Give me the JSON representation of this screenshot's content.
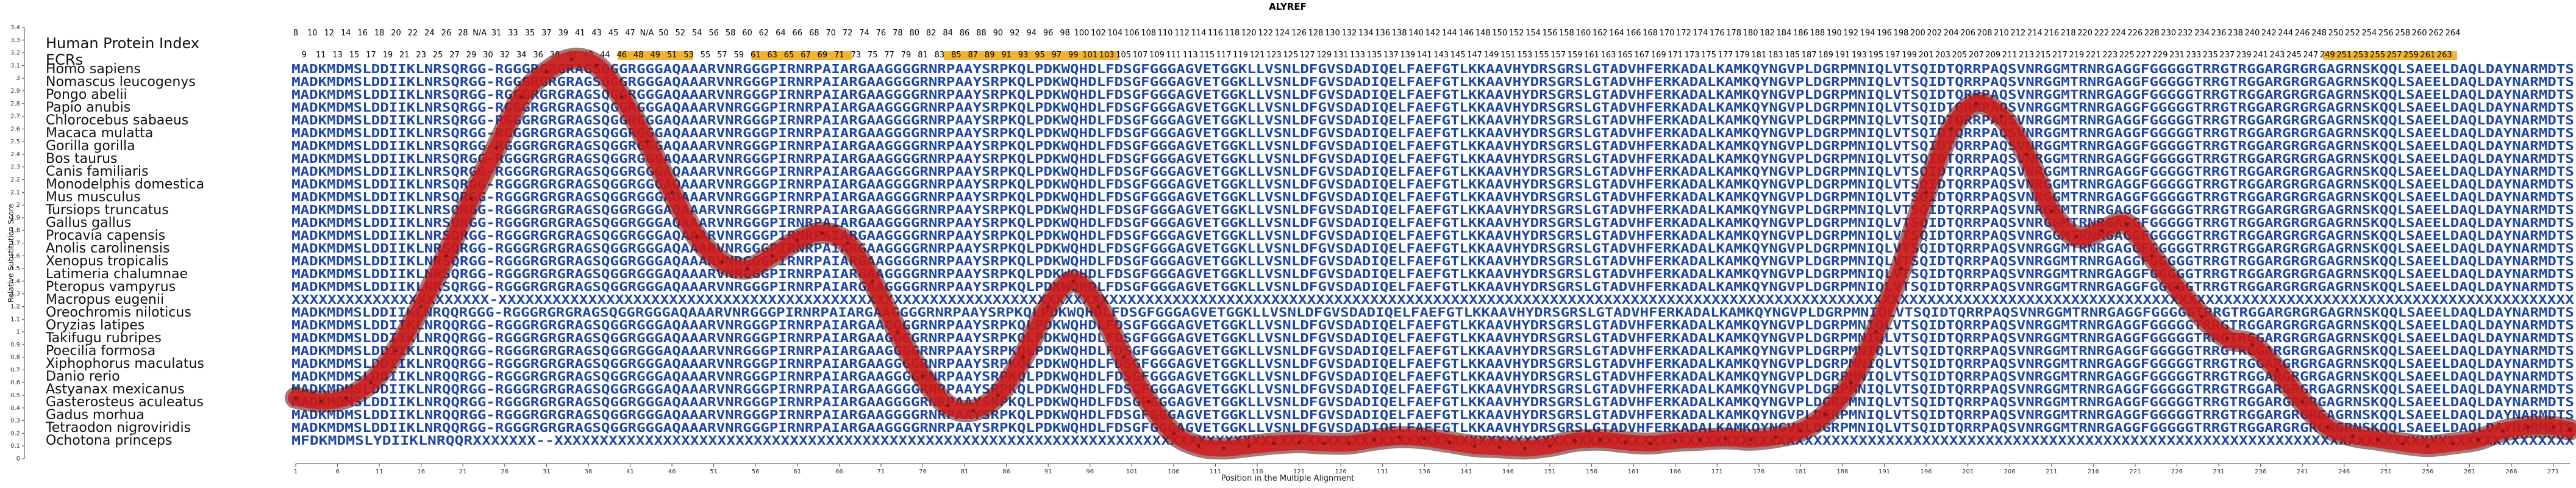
{
  "chart_data": {
    "type": "line",
    "title": "ALYREF",
    "xlabel": "Position in the Multiple Alignment",
    "ylabel": "Relative Substitution Score",
    "ylim": [
      0,
      3.4
    ],
    "yticks": [
      "0",
      "0.1",
      "0.2",
      "0.3",
      "0.4",
      "0.5",
      "0.6",
      "0.7",
      "0.8",
      "0.9",
      "1",
      "1.1",
      "1.2",
      "1.3",
      "1.4",
      "1.5",
      "1.6",
      "1.7",
      "1.8",
      "1.9",
      "2",
      "2.1",
      "2.2",
      "2.3",
      "2.4",
      "2.5",
      "2.6",
      "2.7",
      "2.8",
      "2.9",
      "3",
      "3.1",
      "3.2",
      "3.3",
      "3.4"
    ],
    "xlim": [
      1,
      273
    ],
    "xticks": [
      "1",
      "6",
      "11",
      "16",
      "21",
      "26",
      "31",
      "36",
      "41",
      "46",
      "51",
      "56",
      "61",
      "66",
      "71",
      "76",
      "81",
      "86",
      "91",
      "96",
      "101",
      "106",
      "111",
      "116",
      "121",
      "126",
      "131",
      "136",
      "141",
      "146",
      "151",
      "156",
      "161",
      "166",
      "171",
      "176",
      "181",
      "186",
      "191",
      "196",
      "201",
      "206",
      "211",
      "216",
      "221",
      "226",
      "231",
      "236",
      "241",
      "246",
      "251",
      "256",
      "261",
      "266",
      "271"
    ],
    "grid": false,
    "header_labels": {
      "index": "Human Protein Index",
      "ecrs": "ECRs"
    },
    "human_index": [
      "8",
      "10",
      "12",
      "14",
      "16",
      "18",
      "20",
      "22",
      "24",
      "26",
      "28",
      "N/A",
      "31",
      "33",
      "35",
      "37",
      "39",
      "41",
      "43",
      "45",
      "47",
      "N/A",
      "50",
      "52",
      "54",
      "56",
      "58",
      "60",
      "62",
      "64",
      "66",
      "68",
      "70",
      "72",
      "74",
      "76",
      "78",
      "80",
      "82",
      "84",
      "86",
      "88",
      "90",
      "92",
      "94",
      "96",
      "98",
      "100",
      "102",
      "104",
      "106",
      "108",
      "110",
      "112",
      "114",
      "116",
      "118",
      "120",
      "122",
      "124",
      "126",
      "128",
      "130",
      "132",
      "134",
      "136",
      "138",
      "140",
      "142",
      "144",
      "146",
      "148",
      "150",
      "152",
      "154",
      "156",
      "158",
      "160",
      "162",
      "164",
      "166",
      "168",
      "170",
      "172",
      "174",
      "176",
      "178",
      "180",
      "182",
      "184",
      "186",
      "188",
      "190",
      "192",
      "194",
      "196",
      "198",
      "200",
      "202",
      "204",
      "206",
      "208",
      "210",
      "212",
      "214",
      "216",
      "218",
      "220",
      "222",
      "224",
      "226",
      "228",
      "230",
      "232",
      "234",
      "236",
      "238",
      "240",
      "242",
      "244",
      "246",
      "248",
      "250",
      "252",
      "254",
      "256",
      "258",
      "260",
      "262",
      "264"
    ],
    "ecr_index": [
      "9",
      "11",
      "13",
      "15",
      "17",
      "19",
      "21",
      "23",
      "25",
      "27",
      "29",
      "30",
      "32",
      "34",
      "36",
      "38",
      "40",
      "42",
      "44",
      "46",
      "48",
      "49",
      "51",
      "53",
      "55",
      "57",
      "59",
      "61",
      "63",
      "65",
      "67",
      "69",
      "71",
      "73",
      "75",
      "77",
      "79",
      "81",
      "83",
      "85",
      "87",
      "89",
      "91",
      "93",
      "95",
      "97",
      "99",
      "101",
      "103",
      "105",
      "107",
      "109",
      "111",
      "113",
      "115",
      "117",
      "119",
      "121",
      "123",
      "125",
      "127",
      "129",
      "131",
      "133",
      "135",
      "137",
      "139",
      "141",
      "143",
      "145",
      "147",
      "149",
      "151",
      "153",
      "155",
      "157",
      "159",
      "161",
      "163",
      "165",
      "167",
      "169",
      "171",
      "173",
      "175",
      "177",
      "179",
      "181",
      "183",
      "185",
      "187",
      "189",
      "191",
      "193",
      "195",
      "197",
      "199",
      "201",
      "203",
      "205",
      "207",
      "209",
      "211",
      "213",
      "215",
      "217",
      "219",
      "221",
      "223",
      "225",
      "227",
      "229",
      "231",
      "233",
      "235",
      "237",
      "239",
      "241",
      "243",
      "245",
      "247",
      "249",
      "251",
      "253",
      "255",
      "257",
      "259",
      "261",
      "263"
    ],
    "ecr_highlight_ranges": [
      [
        40,
        48
      ],
      [
        56,
        67
      ],
      [
        79,
        99
      ],
      [
        244,
        259
      ]
    ],
    "species": [
      "Homo sapiens",
      "Nomascus leucogenys",
      "Pongo abelii",
      "Papio anubis",
      "Chlorocebus sabaeus",
      "Macaca mulatta",
      "Gorilla gorilla",
      "Bos taurus",
      "Canis familiaris",
      "Monodelphis domestica",
      "Mus musculus",
      "Tursiops truncatus",
      "Gallus gallus",
      "Procavia capensis",
      "Anolis carolinensis",
      "Xenopus tropicalis",
      "Latimeria chalumnae",
      "Pteropus vampyrus",
      "Macropus eugenii",
      "Oreochromis niloticus",
      "Oryzias latipes",
      "Takifugu rubripes",
      "Poecilia formosa",
      "Xiphophorus maculatus",
      "Danio rerio",
      "Astyanax mexicanus",
      "Gasterosteus aculeatus",
      "Gadus morhua",
      "Tetraodon nigroviridis",
      "Ochotona princeps"
    ],
    "sequences": [
      "MADKMDMSLDDIIKLNRSQRGG-RGGGRGRGRAGSQGGRGGGAQAAARVNRGGGPIRNRPAIARGAAGGGGRNRPAAYSRPKQLPDKWQHDLFDSGFGGGAGVETGGKLLVSNLDFGVSDADIQELFAEFGTLKKAAVHYDRSGRSLGTADVHFERKADALKAMKQYNGVPLDGRPMNIQLVTSQIDTQRRPAQSVNRGGMTRNRGAGGFGGGGGTRRGTRGGARGRGRGAGRNSKQQLSAEELDAQLDAYNARMDTS",
      "MADKMDMSLDDIIKLNRSQRGG-RGGGRGRGRAGSQGGRGGGAQAAARVNRGGGPIRNRPAIARGAAGGGGRNRPAAYSRPKQLPDKWQHDLFDSGFGGGAGVETGGKLLVSNLDFGVSDADIQELFAEFGTLKKAAVHYDRSGRSLGTADVHFERKADALKAMKQYNGVPLDGRPMNIQLVTSQIDTQRRPAQSVNRGGMTRNRGAGGFGGGGGTRRGTRGGARGRGRGAGRNSKQQLSAEELDAQLDAYNARMDTS",
      "MADKMDMSLDDIIKLNRSQRGG-RGGGRGRGRAGSQGGRGGGAQAAARVNRGGGPIRNRPAIARGAAGGGGRNRPAAYSRPKQLPDKWQHDLFDSGFGGGAGVETGGKLLVSNLDFGVSDADIQELFAEFGTLKKAAVHYDRSGRSLGTADVHFERKADALKAMKQYNGVPLDGRPMNIQLVTSQIDTQRRPAQSVNRGGMTRNRGAGGFGGGGGTRRGTRGGARGRGRGAGRNSKQQLSAEELDAQLDAYNARMDTS",
      "MADKMDMSLDDIIKLNRSQRGG-RGGGRGRGRAGSQGGRGGGAQAAARVNRGGGPIRNRPAIARGAAGGGGRNRPAAYSRPKQLPDKWQHDLFDSGFGGGAGVETGGKLLVSNLDFGVSDADIQELFAEFGTLKKAAVHYDRSGRSLGTADVHFERKADALKAMKQYNGVPLDGRPMNIQLVTSQIDTQRRPAQSVNRGGMTRNRGAGGFGGGGGTRRGTRGGARGRGRGAGRNSKQQLSAEELDAQLDAYNARMDTS",
      "MADKMDMSLDDIIKLNRSQRGG-RGGGRGRGRAGSQGGRGGGAQAAARVNRGGGPIRNRPAIARGAAGGGGRNRPAAYSRPKQLPDKWQHDLFDSGFGGGAGVETGGKLLVSNLDFGVSDADIQELFAEFGTLKKAAVHYDRSGRSLGTADVHFERKADALKAMKQYNGVPLDGRPMNIQLVTSQIDTQRRPAQSVNRGGMTRNRGAGGFGGGGGTRRGTRGGARGRGRGAGRNSKQQLSAEELDAQLDAYNARMDTS",
      "MADKMDMSLDDIIKLNRSQRGG-RGGGRGRGRAGSQGGRGGGAQAAARVNRGGGPIRNRPAIARGAAGGGGRNRPAAYSRPKQLPDKWQHDLFDSGFGGGAGVETGGKLLVSNLDFGVSDADIQELFAEFGTLKKAAVHYDRSGRSLGTADVHFERKADALKAMKQYNGVPLDGRPMNIQLVTSQIDTQRRPAQSVNRGGMTRNRGAGGFGGGGGTRRGTRGGARGRGRGAGRNSKQQLSAEELDAQLDAYNARMDTS",
      "MADKMDMSLDDIIKLNRSQRGG-RGGGRGRGRAGSQGGRGGGAQAAARVNRGGGPIRNRPAIARGAAGGGGRNRPAAYSRPKQLPDKWQHDLFDSGFGGGAGVETGGKLLVSNLDFGVSDADIQELFAEFGTLKKAAVHYDRSGRSLGTADVHFERKADALKAMKQYNGVPLDGRPMNIQLVTSQIDTQRRPAQSVNRGGMTRNRGAGGFGGGGGTRRGTRGGARGRGRGAGRNSKQQLSAEELDAQLDAYNARMDTS",
      "MADKMDMSLDDIIKLNRSQRGG-RGGGRGRGRAGSQGGRGGGAQAAARVNRGGGPIRNRPAIARGAAGGGGRNRPAAYSRPKQLPDKWQHDLFDSGFGGGAGVETGGKLLVSNLDFGVSDADIQELFAEFGTLKKAAVHYDRSGRSLGTADVHFERKADALKAMKQYNGVPLDGRPMNIQLVTSQIDTQRRPAQSVNRGGMTRNRGAGGFGGGGGTRRGTRGGARGRGRGAGRNSKQQLSAEELDAQLDAYNARMDTS",
      "MADKMDMSLDDIIKLNRSQRGG-RGGGRGRGRAGSQGGRGGGAQAAARVNRGGGPIRNRPAIARGAAGGGGRNRPAAYSRPKQLPDKWQHDLFDSGFGGGAGVETGGKLLVSNLDFGVSDADIQELFAEFGTLKKAAVHYDRSGRSLGTADVHFERKADALKAMKQYNGVPLDGRPMNIQLVTSQIDTQRRPAQSVNRGGMTRNRGAGGFGGGGGTRRGTRGGARGRGRGAGRNSKQQLSAEELDAQLDAYNARMDTS",
      "MADKMDMSLDDIIKLNRSQRGG-RGGGRGRGRAGSQGGRGGGAQAAARVNRGGGPIRNRPAIARGAAGGGGRNRPAAYSRPKQLPDKWQHDLFDSGFGGGAGVETGGKLLVSNLDFGVSDADIQELFAEFGTLKKAAVHYDRSGRSLGTADVHFERKADALKAMKQYNGVPLDGRPMNIQLVTSQIDTQRRPAQSVNRGGMTRNRGAGGFGGGGGTRRGTRGGARGRGRGAGRNSKQQLSAEELDAQLDAYNARMDTS",
      "MADKMDMSLDDIIKLNRSQRGG-RGGGRGRGRAGSQGGRGGGAQAAARVNRGGGPIRNRPAIARGAAGGGGRNRPAAYSRPKQLPDKWQHDLFDSGFGGGAGVETGGKLLVSNLDFGVSDADIQELFAEFGTLKKAAVHYDRSGRSLGTADVHFERKADALKAMKQYNGVPLDGRPMNIQLVTSQIDTQRRPAQSVNRGGMTRNRGAGGFGGGGGTRRGTRGGARGRGRGAGRNSKQQLSAEELDAQLDAYNARMDTS",
      "MADKMDMSLDDIIKLNRSQRGG-RGGGRGRGRAGSQGGRGGGAQAAARVNRGGGPIRNRPAIARGAAGGGGRNRPAAYSRPKQLPDKWQHDLFDSGFGGGAGVETGGKLLVSNLDFGVSDADIQELFAEFGTLKKAAVHYDRSGRSLGTADVHFERKADALKAMKQYNGVPLDGRPMNIQLVTSQIDTQRRPAQSVNRGGMTRNRGAGGFGGGGGTRRGTRGGARGRGRGAGRNSKQQLSAEELDAQLDAYNARMDTS",
      "MADKMDMSLDDIIKLNRSQRGG-RGGGRGRGRAGSQGGRGGGAQAAARVNRGGGPIRNRPAIARGAAGGGGRNRPAAYSRPKQLPDKWQHDLFDSGFGGGAGVETGGKLLVSNLDFGVSDADIQELFAEFGTLKKAAVHYDRSGRSLGTADVHFERKADALKAMKQYNGVPLDGRPMNIQLVTSQIDTQRRPAQSVNRGGMTRNRGAGGFGGGGGTRRGTRGGARGRGRGAGRNSKQQLSAEELDAQLDAYNARMDTS",
      "MADKMDMSLDDIIKLNRSQRGG-RGGGRGRGRAGSQGGRGGGAQAAARVNRGGGPIRNRPAIARGAAGGGGRNRPAAYSRPKQLPDKWQHDLFDSGFGGGAGVETGGKLLVSNLDFGVSDADIQELFAEFGTLKKAAVHYDRSGRSLGTADVHFERKADALKAMKQYNGVPLDGRPMNIQLVTSQIDTQRRPAQSVNRGGMTRNRGAGGFGGGGGTRRGTRGGARGRGRGAGRNSKQQLSAEELDAQLDAYNARMDTS",
      "MADKMDMSLDDIIKLNRSQRGG-RGGGRGRGRAGSQGGRGGGAQAAARVNRGGGPIRNRPAIARGAAGGGGRNRPAAYSRPKQLPDKWQHDLFDSGFGGGAGVETGGKLLVSNLDFGVSDADIQELFAEFGTLKKAAVHYDRSGRSLGTADVHFERKADALKAMKQYNGVPLDGRPMNIQLVTSQIDTQRRPAQSVNRGGMTRNRGAGGFGGGGGTRRGTRGGARGRGRGAGRNSKQQLSAEELDAQLDAYNARMDTS",
      "MADKMDMSLDDIIKLNRSQRGG-RGGGRGRGRAGSQGGRGGGAQAAARVNRGGGPIRNRPAIARGAAGGGGRNRPAAYSRPKQLPDKWQHDLFDSGFGGGAGVETGGKLLVSNLDFGVSDADIQELFAEFGTLKKAAVHYDRSGRSLGTADVHFERKADALKAMKQYNGVPLDGRPMNIQLVTSQIDTQRRPAQSVNRGGMTRNRGAGGFGGGGGTRRGTRGGARGRGRGAGRNSKQQLSAEELDAQLDAYNARMDTS",
      "MADKMDMSLDDIIKLNRSQRGG-RGGGRGRGRAGSQGGRGGGAQAAARVNRGGGPIRNRPAIARGAAGGGGRNRPAAYSRPKQLPDKWQHDLFDSGFGGGAGVETGGKLLVSNLDFGVSDADIQELFAEFGTLKKAAVHYDRSGRSLGTADVHFERKADALKAMKQYNGVPLDGRPMNIQLVTSQIDTQRRPAQSVNRGGMTRNRGAGGFGGGGGTRRGTRGGARGRGRGAGRNSKQQLSAEELDAQLDAYNARMDTS",
      "MADKMDMSLDDIIKLNRSQRGG-RGGGRGRGRAGSQGGRGGGAQAAARVNRGGGPIRNRPAIARGAAGGGGRNRPAAYSRPKQLPDKWQHDLFDSGFGGGAGVETGGKLLVSNLDFGVSDADIQELFAEFGTLKKAAVHYDRSGRSLGTADVHFERKADALKAMKQYNGVPLDGRPMNIQLVTSQIDTQRRPAQSVNRGGMTRNRGAGGFGGGGGTRRGTRGGARGRGRGAGRNSKQQLSAEELDAQLDAYNARMDTS",
      "XXXXXXXXXXXXXXXXXXXXXX-XXXXXXXXXXXXXXXXXXXXXXXXXXXXXXXXXXXXXXXXXXXXXXXXXXXXXXXXXXXXXXXXXXXXXXXXXXXXXXXXXXXXXXXXXXXXXXXXXXXXXXXXXXXXXXXXXXXXXXXXXXXXXXXXXXXXXXXXXXXXXXXXXXXXXXXXXXXXXXXXXXXXXXXXXXXXXXXXXXXXXXXXXXXXXXXXXXXXXXXXXXXXXXXXXXXXXXXXXXXXXXXXXXXXXXX",
      "MADKMDMSLDDIIKLNRQQRGGG-RGGGRGRGRAGSQGGRGGGAQAAARVNRGGGPIRNRPAIARGAAGGGGRNRPAAYSRPKQLPDKWQHDLFDSGFGGGAGVETGGKLLVSNLDFGVSDADIQELFAEFGTLKKAAVHYDRSGRSLGTADVHFERKADALKAMKQYNGVPLDGRPMNIQLVTSQIDTQRRPAQSVNRGGMTRNRGAGGFGGGGGTRRGTRGGARGRGRGAGRNSKQQLSAEELDAQLDAYNARMDTS",
      "MADKMDMSLDDIIKLNRQQRGG-RGGGRGRGRAGSQGGRGGGAQAAARVNRGGGPIRNRPAIARGAAGGGGRNRPAAYSRPKQLPDKWQHDLFDSGFGGGAGVETGGKLLVSNLDFGVSDADIQELFAEFGTLKKAAVHYDRSGRSLGTADVHFERKADALKAMKQYNGVPLDGRPMNIQLVTSQIDTQRRPAQSVNRGGMTRNRGAGGFGGGGGTRRGTRGGARGRGRGAGRNSKQQLSAEELDAQLDAYNARMDTS",
      "MADKMDMSLDDIIKLNRQQRGG-RGGGRGRGRAGSQGGRGGGAQAAARVNRGGGPIRNRPAIARGAAGGGGRNRPAAYSRPKQLPDKWQHDLFDSGFGGGAGVETGGKLLVSNLDFGVSDADIQELFAEFGTLKKAAVHYDRSGRSLGTADVHFERKADALKAMKQYNGVPLDGRPMNIQLVTSQIDTQRRPAQSVNRGGMTRNRGAGGFGGGGGTRRGTRGGARGRGRGAGRNSKQQLSAEELDAQLDAYNARMDTS",
      "MADKMDMSLDDIIKLNRQQRGG-RGGGRGRGRAGSQGGRGGGAQAAARVNRGGGPIRNRPAIARGAAGGGGRNRPAAYSRPKQLPDKWQHDLFDSGFGGGAGVETGGKLLVSNLDFGVSDADIQELFAEFGTLKKAAVHYDRSGRSLGTADVHFERKADALKAMKQYNGVPLDGRPMNIQLVTSQIDTQRRPAQSVNRGGMTRNRGAGGFGGGGGTRRGTRGGARGRGRGAGRNSKQQLSAEELDAQLDAYNARMDTS",
      "MADKMDMSLDDIIKLNRQQRGG-RGGGRGRGRAGSQGGRGGGAQAAARVNRGGGPIRNRPAIARGAAGGGGRNRPAAYSRPKQLPDKWQHDLFDSGFGGGAGVETGGKLLVSNLDFGVSDADIQELFAEFGTLKKAAVHYDRSGRSLGTADVHFERKADALKAMKQYNGVPLDGRPMNIQLVTSQIDTQRRPAQSVNRGGMTRNRGAGGFGGGGGTRRGTRGGARGRGRGAGRNSKQQLSAEELDAQLDAYNARMDTS",
      "MADKMDMSLDDIIKLNRQQRGG-RGGGRGRGRAGSQGGRGGGAQAAARVNRGGGPIRNRPAIARGAAGGGGRNRPAAYSRPKQLPDKWQHDLFDSGFGGGAGVETGGKLLVSNLDFGVSDADIQELFAEFGTLKKAAVHYDRSGRSLGTADVHFERKADALKAMKQYNGVPLDGRPMNIQLVTSQIDTQRRPAQSVNRGGMTRNRGAGGFGGGGGTRRGTRGGARGRGRGAGRNSKQQLSAEELDAQLDAYNARMDTS",
      "MADKMDMSLDDIIKLNRQQRGG-RGGGRGRGRAGSQGGRGGGAQAAARVNRGGGPIRNRPAIARGAAGGGGRNRPAAYSRPKQLPDKWQHDLFDSGFGGGAGVETGGKLLVSNLDFGVSDADIQELFAEFGTLKKAAVHYDRSGRSLGTADVHFERKADALKAMKQYNGVPLDGRPMNIQLVTSQIDTQRRPAQSVNRGGMTRNRGAGGFGGGGGTRRGTRGGARGRGRGAGRNSKQQLSAEELDAQLDAYNARMDTS",
      "MADKMDMSLDDIIKLNRQQRGG-RGGGRGRGRAGSQGGRGGGAQAAARVNRGGGPIRNRPAIARGAAGGGGRNRPAAYSRPKQLPDKWQHDLFDSGFGGGAGVETGGKLLVSNLDFGVSDADIQELFAEFGTLKKAAVHYDRSGRSLGTADVHFERKADALKAMKQYNGVPLDGRPMNIQLVTSQIDTQRRPAQSVNRGGMTRNRGAGGFGGGGGTRRGTRGGARGRGRGAGRNSKQQLSAEELDAQLDAYNARMDTS",
      "MADKMDMSLDDIIKLNRQQRGG-RGGGRGRGRAGSQGGRGGGAQAAARVNRGGGPIRNRPAIARGAAGGGGRNRPAAYSRPKQLPDKWQHDLFDSGFGGGAGVETGGKLLVSNLDFGVSDADIQELFAEFGTLKKAAVHYDRSGRSLGTADVHFERKADALKAMKQYNGVPLDGRPMNIQLVTSQIDTQRRPAQSVNRGGMTRNRGAGGFGGGGGTRRGTRGGARGRGRGAGRNSKQQLSAEELDAQLDAYNARMDTS",
      "MADKMDMSLDDIIKLNRQQRGG-RGGGRGRGRAGSQGGRGGGAQAAARVNRGGGPIRNRPAIARGAAGGGGRNRPAAYSRPKQLPDKWQHDLFDSGFGGGAGVETGGKLLVSNLDFGVSDADIQELFAEFGTLKKAAVHYDRSGRSLGTADVHFERKADALKAMKQYNGVPLDGRPMNIQLVTSQIDTQRRPAQSVNRGGMTRNRGAGGFGGGGGTRRGTRGGARGRGRGAGRNSKQQLSAEELDAQLDAYNARMDTS",
      "MFDKMDMSLYDIIKLNRQQRXXXXXXX--XXXXXXXXXXXXXXXXXXXXXXXXXXXXXXXXXXXXXXXXXXXXXXXXXXXXXXXXXXXXXXXXXXXXXXXXXXXXXXXXXXXXXXXXXXXXXXXXXXXXXXXXXXXXXXXXXXXXXXXXXXXXXXXXXXXXXXXXXXXXXXXXXXXXXXXXXXXXXXXXXXXXXXXXXXXXXXXXXXXXXXXXXXXXXXXXXXXXXXXXXXXXXXXXXXXXXXXXXXXXXXX"
    ],
    "series": [
      {
        "x": [
          1,
          4,
          7,
          10,
          13,
          16,
          19,
          22,
          25,
          28,
          31,
          34,
          37,
          40,
          43,
          46,
          49,
          52,
          55,
          58,
          61,
          64,
          67,
          70,
          73,
          76,
          79,
          82,
          85,
          88,
          91,
          94,
          97,
          100,
          103,
          106,
          109,
          112,
          115,
          118,
          121,
          124,
          127,
          130,
          133,
          136,
          139,
          142,
          145,
          148,
          151,
          154,
          157,
          160,
          163,
          166,
          169,
          172,
          175,
          178,
          181,
          184,
          187,
          190,
          193,
          196,
          199,
          202,
          205,
          208,
          211,
          214,
          217,
          220,
          223,
          226,
          229,
          232,
          235,
          238,
          241,
          244,
          247,
          250,
          253,
          256,
          259,
          262,
          265,
          268,
          271,
          273
        ],
        "y": [
          0.48,
          0.45,
          0.48,
          0.6,
          0.85,
          1.2,
          1.6,
          2.05,
          2.45,
          2.85,
          3.05,
          3.15,
          3.1,
          2.85,
          2.5,
          2.1,
          1.75,
          1.55,
          1.5,
          1.6,
          1.72,
          1.78,
          1.7,
          1.4,
          1.0,
          0.65,
          0.42,
          0.38,
          0.5,
          0.8,
          1.2,
          1.4,
          1.2,
          0.8,
          0.45,
          0.2,
          0.1,
          0.08,
          0.1,
          0.12,
          0.13,
          0.12,
          0.12,
          0.15,
          0.17,
          0.16,
          0.13,
          0.1,
          0.09,
          0.08,
          0.1,
          0.14,
          0.15,
          0.13,
          0.12,
          0.14,
          0.15,
          0.16,
          0.15,
          0.17,
          0.22,
          0.35,
          0.6,
          1.0,
          1.5,
          2.1,
          2.6,
          2.8,
          2.7,
          2.4,
          1.95,
          1.75,
          1.8,
          1.85,
          1.6,
          1.35,
          1.12,
          0.95,
          0.9,
          0.7,
          0.45,
          0.25,
          0.18,
          0.15,
          0.12,
          0.1,
          0.12,
          0.15,
          0.22,
          0.25,
          0.25,
          0.23
        ]
      }
    ],
    "colors": {
      "line": "#d41a1a",
      "line_shadow": "#5a0d0d",
      "residue": "#1f47a3",
      "residue_light": "#6b8fd6",
      "gap": "#6b6b6b",
      "ecr_band": "#f2b233",
      "axis": "#444444"
    }
  }
}
